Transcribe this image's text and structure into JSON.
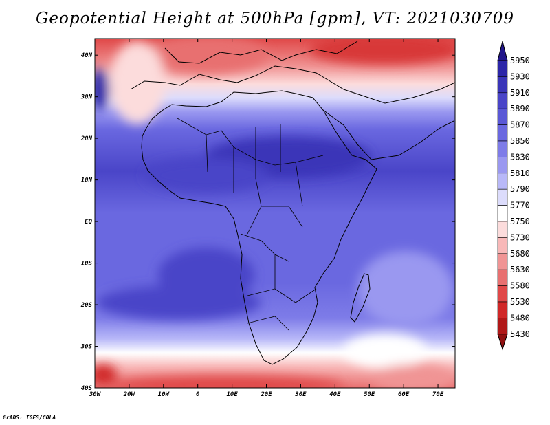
{
  "title": "Geopotential Height at 500hPa [gpm], VT: 2021030709",
  "credit": "GrADS: IGES/COLA",
  "map": {
    "lon_ticks": [
      "30W",
      "20W",
      "10W",
      "0",
      "10E",
      "20E",
      "30E",
      "40E",
      "50E",
      "60E",
      "70E"
    ],
    "lat_ticks": [
      "40N",
      "30N",
      "20N",
      "10N",
      "EQ",
      "10S",
      "20S",
      "30S",
      "40S"
    ],
    "lon_range": [
      -30,
      75
    ],
    "lat_range": [
      -40,
      44
    ]
  },
  "colorbar": {
    "levels": [
      "5950",
      "5930",
      "5910",
      "5890",
      "5870",
      "5850",
      "5830",
      "5810",
      "5790",
      "5770",
      "5750",
      "5730",
      "5680",
      "5630",
      "5580",
      "5530",
      "5480",
      "5430"
    ],
    "colors": [
      "#22168c",
      "#2c26a8",
      "#3a35b8",
      "#4a45c8",
      "#5a58d6",
      "#6a68e0",
      "#7e7ce8",
      "#9a98f0",
      "#b8b8f8",
      "#dcdcfc",
      "#ffffff",
      "#fcdcdc",
      "#f8b8b8",
      "#f09494",
      "#e87070",
      "#e04848",
      "#d02828",
      "#b01818",
      "#901010"
    ]
  },
  "icons": {
    "cb_top": "triangle-up",
    "cb_bottom": "triangle-down"
  }
}
